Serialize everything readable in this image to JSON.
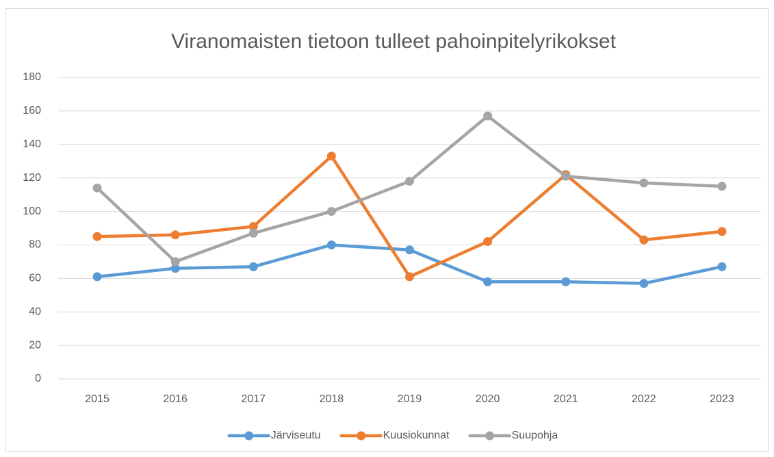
{
  "chart_data": {
    "type": "line",
    "title": "Viranomaisten tietoon tulleet pahoinpitelyrikokset",
    "categories": [
      "2015",
      "2016",
      "2017",
      "2018",
      "2019",
      "2020",
      "2021",
      "2022",
      "2023"
    ],
    "series": [
      {
        "name": "Järviseutu",
        "color": "#5b9bd5",
        "values": [
          61,
          66,
          67,
          80,
          77,
          58,
          58,
          57,
          67
        ]
      },
      {
        "name": "Kuusiokunnat",
        "color": "#ed7d31",
        "values": [
          85,
          86,
          91,
          133,
          61,
          82,
          122,
          83,
          88
        ]
      },
      {
        "name": "Suupohja",
        "color": "#a5a5a5",
        "values": [
          114,
          70,
          87,
          100,
          118,
          157,
          121,
          117,
          115
        ]
      }
    ],
    "ylim": [
      0,
      180
    ],
    "yticks": [
      0,
      20,
      40,
      60,
      80,
      100,
      120,
      140,
      160,
      180
    ],
    "grid": true,
    "legend": "bottom"
  }
}
